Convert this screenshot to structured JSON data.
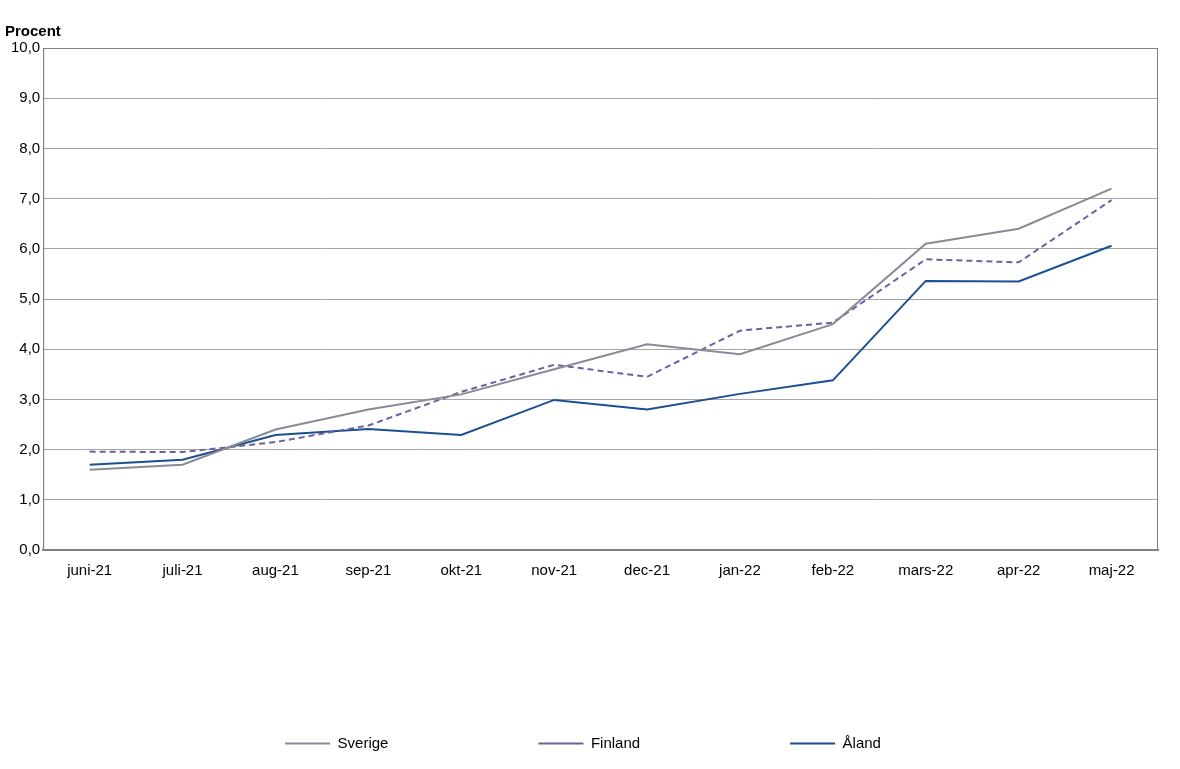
{
  "chart_data": {
    "type": "line",
    "y_label": "Procent",
    "categories": [
      "juni-21",
      "juli-21",
      "aug-21",
      "sep-21",
      "okt-21",
      "nov-21",
      "dec-21",
      "jan-22",
      "feb-22",
      "mars-22",
      "apr-22",
      "maj-22"
    ],
    "series": [
      {
        "name": "Sverige",
        "color": "#8a8a96",
        "line_style": "solid",
        "values": [
          1.6,
          1.7,
          2.4,
          2.8,
          3.1,
          3.6,
          4.1,
          3.9,
          4.5,
          6.1,
          6.4,
          7.2
        ]
      },
      {
        "name": "Finland",
        "color": "#6e5fa0",
        "line_style": "dashed",
        "values": [
          1.96,
          1.95,
          2.15,
          2.48,
          3.15,
          3.69,
          3.45,
          4.37,
          4.53,
          5.79,
          5.73,
          6.97
        ]
      },
      {
        "name": "Åland",
        "color": "#1a4f94",
        "line_style": "solid",
        "values": [
          1.7,
          1.8,
          2.29,
          2.41,
          2.29,
          2.99,
          2.8,
          3.11,
          3.38,
          5.36,
          5.35,
          6.06
        ]
      }
    ],
    "ylim": [
      0,
      10
    ],
    "yticks": [
      {
        "value": 0,
        "label": "0,0"
      },
      {
        "value": 1,
        "label": "1,0"
      },
      {
        "value": 2,
        "label": "2,0"
      },
      {
        "value": 3,
        "label": "3,0"
      },
      {
        "value": 4,
        "label": "4,0"
      },
      {
        "value": 5,
        "label": "5,0"
      },
      {
        "value": 6,
        "label": "6,0"
      },
      {
        "value": 7,
        "label": "7,0"
      },
      {
        "value": 8,
        "label": "8,0"
      },
      {
        "value": 9,
        "label": "9,0"
      },
      {
        "value": 10,
        "label": "10,0"
      }
    ],
    "grid": true,
    "legend": "bottom",
    "marker": "none"
  }
}
